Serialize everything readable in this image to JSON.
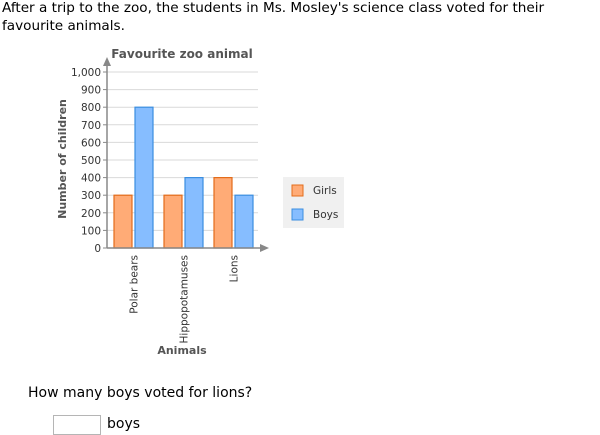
{
  "intro": "After a trip to the zoo, the students in Ms. Mosley's science class voted for their favourite animals.",
  "question": "How many boys voted for lions?",
  "answer": {
    "value": "",
    "unit": "boys"
  },
  "colors": {
    "girls": "#ffab76",
    "girls_stroke": "#e36c1a",
    "boys": "#86bdff",
    "boys_stroke": "#3b8ee0"
  },
  "chart_data": {
    "type": "bar",
    "title": "Favourite zoo animal",
    "xlabel": "Animals",
    "ylabel": "Number of children",
    "categories": [
      "Polar bears",
      "Hippopotamuses",
      "Lions"
    ],
    "series": [
      {
        "name": "Girls",
        "values": [
          300,
          300,
          400
        ]
      },
      {
        "name": "Boys",
        "values": [
          800,
          400,
          300
        ]
      }
    ],
    "ylim": [
      0,
      1000
    ],
    "yticks": [
      0,
      100,
      200,
      300,
      400,
      500,
      600,
      700,
      800,
      900,
      1000
    ],
    "ytick_labels": [
      "0",
      "100",
      "200",
      "300",
      "400",
      "500",
      "600",
      "700",
      "800",
      "900",
      "1,000"
    ],
    "grid": true,
    "legend": "right"
  }
}
